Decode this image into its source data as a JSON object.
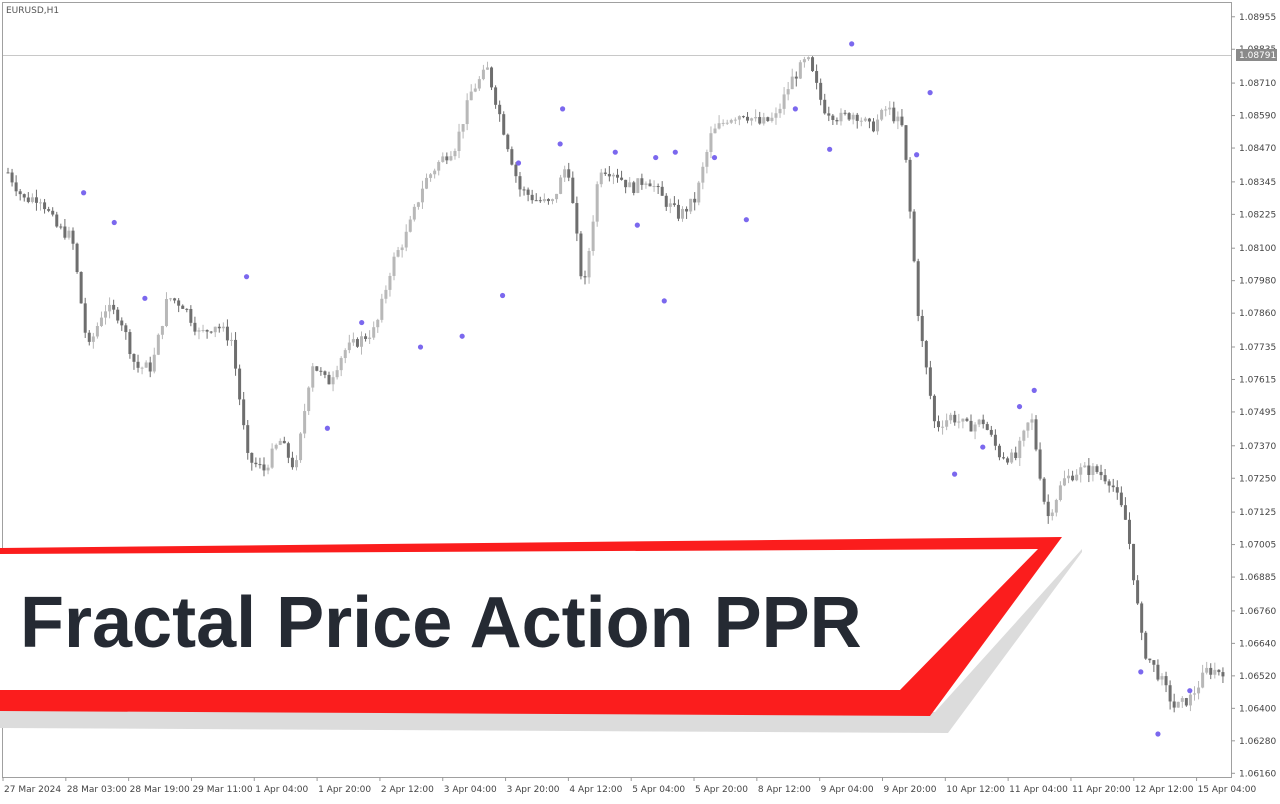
{
  "chart_data": {
    "type": "candlestick",
    "symbol": "EURUSD,H1",
    "current_price": "1.08791",
    "ylim": [
      1.0615,
      1.0898
    ],
    "y_ticks": [
      "1.08955",
      "1.08835",
      "1.08710",
      "1.08590",
      "1.08470",
      "1.08345",
      "1.08225",
      "1.08100",
      "1.07980",
      "1.07860",
      "1.07735",
      "1.07615",
      "1.07495",
      "1.07370",
      "1.07250",
      "1.07125",
      "1.07005",
      "1.06885",
      "1.06760",
      "1.06640",
      "1.06520",
      "1.06400",
      "1.06280",
      "1.06160"
    ],
    "x_ticks": [
      "27 Mar 2024",
      "28 Mar 03:00",
      "28 Mar 19:00",
      "29 Mar 11:00",
      "1 Apr 04:00",
      "1 Apr 20:00",
      "2 Apr 12:00",
      "3 Apr 04:00",
      "3 Apr 20:00",
      "4 Apr 12:00",
      "5 Apr 04:00",
      "5 Apr 20:00",
      "8 Apr 12:00",
      "9 Apr 04:00",
      "9 Apr 20:00",
      "10 Apr 12:00",
      "11 Apr 04:00",
      "11 Apr 20:00",
      "12 Apr 12:00",
      "15 Apr 04:00"
    ],
    "path": [
      1.0838,
      1.0828,
      1.0829,
      1.0818,
      1.0814,
      1.0772,
      1.0788,
      1.0785,
      1.0766,
      1.0766,
      1.0792,
      1.0789,
      1.0778,
      1.0782,
      1.0776,
      1.0732,
      1.0728,
      1.0739,
      1.0728,
      1.0768,
      1.076,
      1.0772,
      1.0776,
      1.078,
      1.0804,
      1.0816,
      1.0834,
      1.0842,
      1.0848,
      1.0868,
      1.0876,
      1.0854,
      1.0832,
      1.0828,
      1.0826,
      1.0842,
      1.0793,
      1.084,
      1.0838,
      1.0832,
      1.0836,
      1.0828,
      1.0822,
      1.0828,
      1.0852,
      1.0858,
      1.086,
      1.0856,
      1.0858,
      1.0872,
      1.088,
      1.0862,
      1.0858,
      1.086,
      1.0854,
      1.0862,
      1.0854,
      1.0782,
      1.0744,
      1.0748,
      1.0744,
      1.0746,
      1.0734,
      1.0732,
      1.0748,
      1.071,
      1.0724,
      1.0728,
      1.0728,
      1.0724,
      1.0708,
      1.0662,
      1.0652,
      1.064,
      1.0644,
      1.0654,
      1.0654
    ],
    "fractals_up": [
      [
        0.065,
        1.0829
      ],
      [
        0.09,
        1.0818
      ],
      [
        0.115,
        1.079
      ],
      [
        0.198,
        1.0798
      ],
      [
        0.264,
        1.0742
      ],
      [
        0.34,
        1.0772
      ],
      [
        0.374,
        1.0776
      ],
      [
        0.42,
        1.084
      ],
      [
        0.456,
        1.086
      ],
      [
        0.499,
        1.0844
      ],
      [
        0.532,
        1.0842
      ],
      [
        0.548,
        1.0844
      ],
      [
        0.58,
        1.0842
      ],
      [
        0.646,
        1.086
      ],
      [
        0.692,
        1.0884
      ],
      [
        0.756,
        1.0866
      ],
      [
        0.829,
        1.075
      ],
      [
        0.841,
        1.0756
      ],
      [
        0.928,
        1.0652
      ]
    ],
    "fractals_down": [
      [
        0.292,
        1.0784
      ],
      [
        0.407,
        1.0794
      ],
      [
        0.454,
        1.085
      ],
      [
        0.517,
        1.082
      ],
      [
        0.539,
        1.0792
      ],
      [
        0.606,
        1.0822
      ],
      [
        0.674,
        1.0848
      ],
      [
        0.745,
        1.0846
      ],
      [
        0.776,
        1.0728
      ],
      [
        0.799,
        1.0738
      ],
      [
        0.942,
        1.0632
      ],
      [
        0.968,
        1.0648
      ]
    ]
  },
  "banner": {
    "title": "Fractal Price Action PPR"
  },
  "colors": {
    "candle_bull": "#b8b8b8",
    "candle_bear": "#6e6e6e",
    "fractal": "#7b68ee",
    "banner_red": "#fb1d1d",
    "banner_shadow": "#dcdcdc",
    "price_tag": "#8a8a8a"
  }
}
